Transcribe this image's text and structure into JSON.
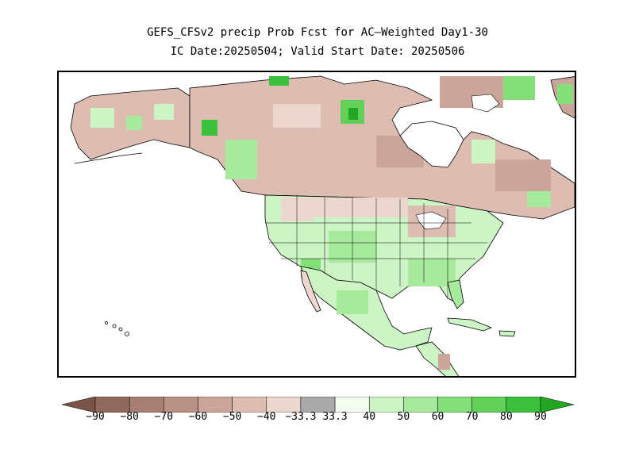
{
  "title_line1": "GEFS_CFSv2 precip Prob Fcst for AC—Weighted Day1-30",
  "title_line2": "IC Date:20250504; Valid Start Date: 20250506",
  "colorbar": {
    "labels": [
      "-90",
      "-80",
      "-70",
      "-60",
      "-50",
      "-40",
      "-33.3",
      "33.3",
      "40",
      "50",
      "60",
      "70",
      "80",
      "90"
    ],
    "colors": [
      "#7a5446",
      "#8f6a5c",
      "#a67f72",
      "#b99286",
      "#cba59a",
      "#ddbdb2",
      "#ecd7cf",
      "#aaaaaa",
      "#f3fdf0",
      "#ccf4c4",
      "#a8ea9d",
      "#85df78",
      "#61d159",
      "#3cbf3c",
      "#23a723"
    ]
  },
  "map": {
    "ocean_color": "#ffffff",
    "coastline_color": "#000000",
    "regions": [
      {
        "name": "alaska-interior",
        "category": "below-40"
      },
      {
        "name": "canada-north",
        "category": "below-50"
      },
      {
        "name": "hudson-bay-surround",
        "category": "below-50"
      },
      {
        "name": "british-columbia",
        "category": "above-50"
      },
      {
        "name": "us-west",
        "category": "above-40"
      },
      {
        "name": "us-southeast",
        "category": "above-50"
      },
      {
        "name": "mexico",
        "category": "above-40"
      },
      {
        "name": "great-lakes",
        "category": "below-40"
      }
    ]
  }
}
